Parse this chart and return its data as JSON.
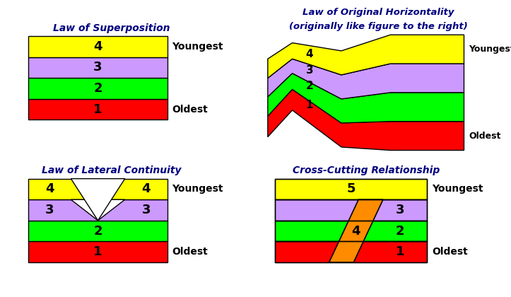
{
  "colors": {
    "yellow": "#FFFF00",
    "purple": "#CC99FF",
    "green": "#00FF00",
    "red": "#FF0000",
    "orange": "#FF8C00",
    "black": "#000000",
    "white": "#FFFFFF"
  },
  "title_color": "#000080",
  "title1": "Law of Superposition",
  "title2_line1": "Law of Original Horizontality",
  "title2_line2": "(originally like figure to the right)",
  "title3": "Law of Lateral Continuity",
  "title4": "Cross-Cutting Relationship",
  "youngest_label": "Youngest",
  "oldest_label": "Oldest"
}
